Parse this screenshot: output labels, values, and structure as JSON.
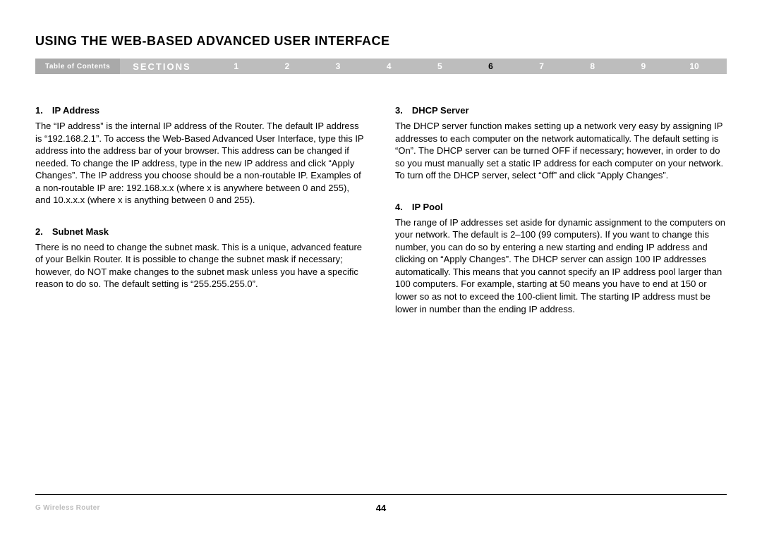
{
  "title": "USING THE WEB-BASED ADVANCED USER INTERFACE",
  "nav": {
    "toc": "Table of Contents",
    "sections_label": "SECTIONS",
    "numbers": [
      "1",
      "2",
      "3",
      "4",
      "5",
      "6",
      "7",
      "8",
      "9",
      "10"
    ],
    "active_index": 5,
    "bar_bg_light": "#bdbdbd",
    "bar_bg_dark": "#a9a9a9",
    "text_color": "#ffffff",
    "active_color": "#000000"
  },
  "left": {
    "item1": {
      "head": "1. IP Address",
      "body": "The “IP address” is the internal IP address of the Router. The default IP address is “192.168.2.1”. To access the Web-Based Advanced User Interface, type this IP address into the address bar of your browser. This address can be changed if needed. To change the IP address, type in the new IP address and click “Apply Changes”. The IP address you choose should be a non-routable IP. Examples of a non-routable IP are: 192.168.x.x (where x is anywhere between 0 and 255), and 10.x.x.x (where x is anything between 0 and 255)."
    },
    "item2": {
      "head": "2. Subnet Mask",
      "body": "There is no need to change the subnet mask. This is a unique, advanced feature of your Belkin Router. It is possible to change the subnet mask if necessary; however, do NOT make changes to the subnet mask unless you have a specific reason to do so. The default setting is “255.255.255.0”."
    }
  },
  "right": {
    "item3": {
      "head": "3. DHCP Server",
      "body": "The DHCP server function makes setting up a network very easy by assigning IP addresses to each computer on the network automatically. The default setting is “On”. The DHCP server can be turned OFF if necessary; however, in order to do so you must manually set a static IP address for each computer on your network. To turn off the DHCP server, select “Off” and click “Apply Changes”."
    },
    "item4": {
      "head": "4. IP Pool",
      "body": "The range of IP addresses set aside for dynamic assignment to the computers on your network. The default is 2–100 (99 computers). If you want to change this number, you can do so by entering a new starting and ending IP address and clicking on “Apply Changes”. The DHCP server can assign 100 IP addresses automatically. This means that you cannot specify an IP address pool larger than 100 computers. For example, starting at 50 means you have to end at 150 or lower so as not to exceed the 100-client limit. The starting IP address must be lower in number than the ending IP address."
    }
  },
  "footer": {
    "left": "G Wireless Router",
    "page": "44",
    "rule_color": "#000000",
    "left_color": "#bdbdbd"
  },
  "typography": {
    "title_fontsize": 18,
    "heading_fontsize": 13,
    "body_fontsize": 13,
    "footer_left_fontsize": 10,
    "page_num_fontsize": 13
  },
  "colors": {
    "background": "#ffffff",
    "text": "#000000"
  }
}
